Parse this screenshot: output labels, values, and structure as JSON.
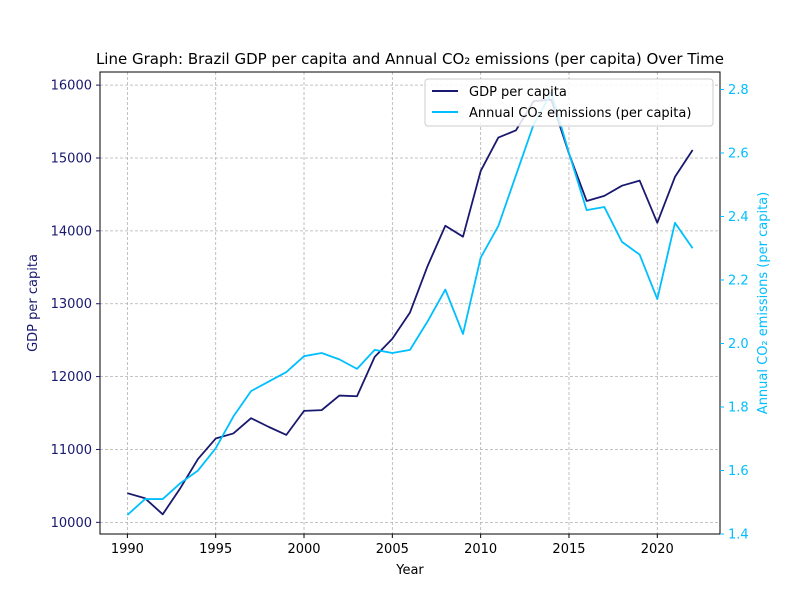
{
  "chart_data": {
    "type": "line",
    "title": "Line Graph: Brazil GDP per capita and Annual CO₂ emissions (per capita) Over Time",
    "xlabel": "Year",
    "ylabel_left": "GDP per capita",
    "ylabel_right": "Annual CO₂ emissions (per capita)",
    "xlim": [
      1988.45,
      1990.0
    ],
    "x_ticks": [
      1990,
      1995,
      2000,
      2005,
      2010,
      2015,
      2020
    ],
    "ylim_left": [
      9840,
      16180
    ],
    "y_ticks_left": [
      10000,
      11000,
      12000,
      13000,
      14000,
      15000,
      16000
    ],
    "ylim_right": [
      1.4,
      2.855
    ],
    "y_ticks_right": [
      "1.4",
      "1.6",
      "1.8",
      "2.0",
      "2.2",
      "2.4",
      "2.6",
      "2.8"
    ],
    "grid": true,
    "legend_position": "top-right",
    "x": [
      1990,
      1991,
      1992,
      1993,
      1994,
      1995,
      1996,
      1997,
      1998,
      1999,
      2000,
      2001,
      2002,
      2003,
      2004,
      2005,
      2006,
      2007,
      2008,
      2009,
      2010,
      2011,
      2012,
      2013,
      2014,
      2015,
      2016,
      2017,
      2018,
      2019,
      2020,
      2021,
      2022
    ],
    "series": [
      {
        "name": "GDP per capita",
        "axis": "left",
        "color": "#191970",
        "values": [
          10400,
          10330,
          10110,
          10470,
          10870,
          11150,
          11220,
          11430,
          11310,
          11200,
          11530,
          11540,
          11740,
          11730,
          12270,
          12520,
          12880,
          13520,
          14070,
          13920,
          14820,
          15280,
          15380,
          15780,
          15800,
          15060,
          14410,
          14480,
          14620,
          14690,
          14110,
          14740,
          15110
        ]
      },
      {
        "name": "Annual CO₂ emissions (per capita)",
        "axis": "right",
        "color": "#00bfff",
        "values": [
          1.46,
          1.51,
          1.51,
          1.56,
          1.6,
          1.67,
          1.77,
          1.85,
          1.88,
          1.91,
          1.96,
          1.97,
          1.95,
          1.92,
          1.98,
          1.97,
          1.98,
          2.07,
          2.17,
          2.03,
          2.27,
          2.37,
          2.53,
          2.69,
          2.79,
          2.6,
          2.42,
          2.43,
          2.32,
          2.28,
          2.14,
          2.38,
          2.3
        ]
      }
    ]
  }
}
